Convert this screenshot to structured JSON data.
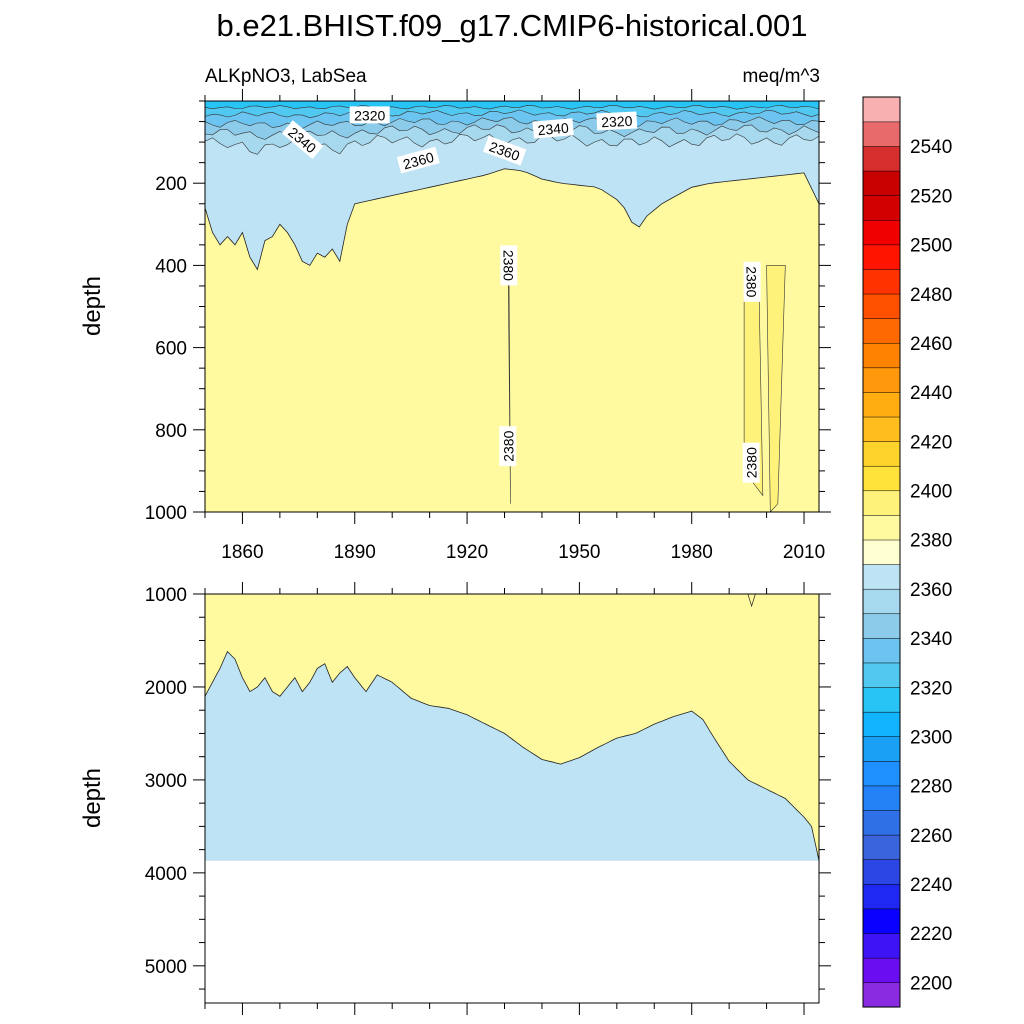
{
  "chart_data": {
    "type": "contour",
    "title": "b.e21.BHIST.f09_g17.CMIP6-historical.001",
    "subtitle_left": "ALKpNO3, LabSea",
    "subtitle_right": "meq/m^3",
    "units": "meq/m^3",
    "xlabel": "",
    "x_ticks": [
      1860,
      1890,
      1920,
      1950,
      1980,
      2010
    ],
    "xlim": [
      1850,
      2014
    ],
    "colorbar": {
      "levels": [
        2200,
        2210,
        2220,
        2230,
        2240,
        2250,
        2260,
        2270,
        2280,
        2290,
        2300,
        2310,
        2320,
        2330,
        2340,
        2350,
        2360,
        2370,
        2380,
        2390,
        2400,
        2410,
        2420,
        2430,
        2440,
        2450,
        2460,
        2470,
        2480,
        2490,
        2500,
        2510,
        2520,
        2530,
        2540,
        2550
      ],
      "colors": [
        "#8a2be2",
        "#6a0df0",
        "#3c14f5",
        "#0a00ff",
        "#1e28f0",
        "#2c46e6",
        "#3a64dc",
        "#2f70e6",
        "#2480f5",
        "#1e90ff",
        "#1aa0f5",
        "#12b4ff",
        "#28c4f5",
        "#50c8f0",
        "#6cc4f0",
        "#8ccbea",
        "#a6d8ee",
        "#bde3f4",
        "#fffed0",
        "#fff9a0",
        "#fff27a",
        "#ffe33a",
        "#fdd22b",
        "#ffbe1e",
        "#ffad10",
        "#ff980a",
        "#ff8200",
        "#ff6a00",
        "#ff5000",
        "#ff3200",
        "#ff1400",
        "#f00000",
        "#d20000",
        "#c80000",
        "#d62d2d",
        "#e86a6a",
        "#f8b0b0"
      ],
      "labels": [
        2200,
        2220,
        2240,
        2260,
        2280,
        2300,
        2320,
        2340,
        2360,
        2380,
        2400,
        2420,
        2440,
        2460,
        2480,
        2500,
        2520,
        2540
      ]
    },
    "panels": [
      {
        "name": "upper",
        "ylabel": "depth",
        "ylim": [
          0,
          1000
        ],
        "y_ticks": [
          200,
          400,
          600,
          800,
          1000
        ],
        "contour_labels": [
          "2320",
          "2340",
          "2360",
          "2360",
          "2340",
          "2320",
          "2380",
          "2380",
          "2380",
          "2380"
        ],
        "boundary_2370": {
          "years": [
            1850,
            1852,
            1854,
            1856,
            1858,
            1860,
            1862,
            1864,
            1866,
            1868,
            1870,
            1872,
            1874,
            1876,
            1878,
            1880,
            1882,
            1884,
            1886,
            1888,
            1890,
            1895,
            1900,
            1905,
            1910,
            1915,
            1920,
            1925,
            1930,
            1935,
            1940,
            1945,
            1950,
            1955,
            1960,
            1963,
            1965,
            1968,
            1972,
            1976,
            1980,
            1985,
            1990,
            1995,
            2000,
            2005,
            2010,
            2014
          ],
          "depth": [
            260,
            320,
            350,
            330,
            350,
            320,
            380,
            410,
            340,
            330,
            300,
            320,
            350,
            390,
            400,
            370,
            380,
            360,
            390,
            300,
            250,
            240,
            230,
            220,
            210,
            200,
            190,
            180,
            165,
            170,
            190,
            200,
            205,
            210,
            240,
            270,
            320,
            280,
            250,
            230,
            210,
            200,
            195,
            190,
            185,
            180,
            175,
            250
          ]
        },
        "shallow_contours": [
          2320,
          2330,
          2340,
          2350,
          2360
        ],
        "shallow_base_depth": [
          15,
          30,
          50,
          70,
          95
        ]
      },
      {
        "name": "lower",
        "ylabel": "depth",
        "ylim": [
          1000,
          5400
        ],
        "y_ticks": [
          1000,
          2000,
          3000,
          4000,
          5000
        ],
        "bottom_depth": 3870,
        "boundary_2370": {
          "years": [
            1850,
            1852,
            1854,
            1856,
            1858,
            1860,
            1862,
            1864,
            1866,
            1868,
            1870,
            1872,
            1874,
            1876,
            1878,
            1880,
            1882,
            1884,
            1886,
            1888,
            1890,
            1893,
            1896,
            1900,
            1905,
            1910,
            1915,
            1920,
            1925,
            1930,
            1935,
            1940,
            1945,
            1950,
            1955,
            1960,
            1965,
            1970,
            1975,
            1980,
            1983,
            1986,
            1990,
            1995,
            2000,
            2005,
            2010,
            2012,
            2014
          ],
          "depth": [
            2100,
            1950,
            1800,
            1620,
            1700,
            1900,
            2050,
            2000,
            1900,
            2050,
            2100,
            2000,
            1900,
            2050,
            1950,
            1800,
            1750,
            1950,
            1850,
            1780,
            1900,
            2050,
            1870,
            1950,
            2120,
            2200,
            2230,
            2300,
            2400,
            2500,
            2650,
            2780,
            2830,
            2760,
            2650,
            2550,
            2500,
            2400,
            2320,
            2260,
            2350,
            2550,
            2800,
            3000,
            3100,
            3200,
            3400,
            3500,
            3870
          ]
        }
      }
    ]
  }
}
